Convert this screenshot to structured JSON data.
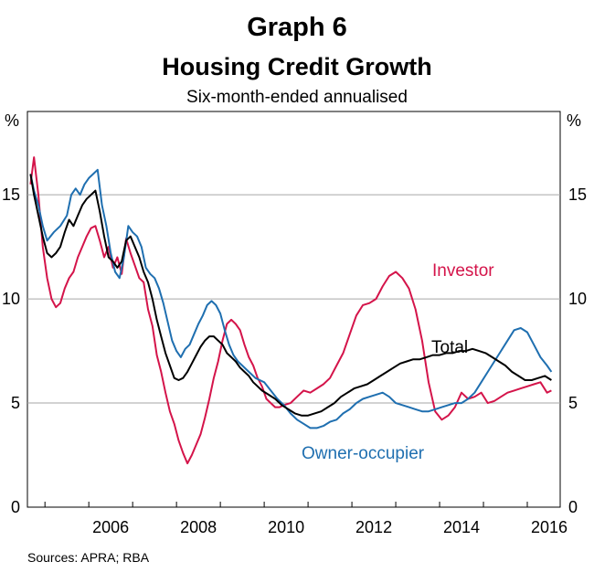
{
  "chart_data": {
    "type": "line",
    "title": "Graph 6",
    "subtitle": "Housing Credit Growth",
    "note": "Six-month-ended annualised",
    "ylabel_left": "%",
    "ylabel_right": "%",
    "xlim": [
      2004.6,
      2016.75
    ],
    "ylim": [
      0,
      19
    ],
    "yticks": [
      0,
      5,
      10,
      15
    ],
    "xticks": [
      2006,
      2008,
      2010,
      2012,
      2014,
      2016
    ],
    "grid": true,
    "source": "Sources:  APRA; RBA",
    "series": [
      {
        "name": "Investor",
        "color": "#d4144a",
        "x": [
          2004.67,
          2004.75,
          2004.85,
          2004.95,
          2005.05,
          2005.15,
          2005.25,
          2005.35,
          2005.45,
          2005.55,
          2005.65,
          2005.75,
          2005.85,
          2005.95,
          2006.05,
          2006.15,
          2006.25,
          2006.35,
          2006.45,
          2006.55,
          2006.65,
          2006.75,
          2006.85,
          2006.95,
          2007.05,
          2007.15,
          2007.25,
          2007.35,
          2007.45,
          2007.55,
          2007.65,
          2007.75,
          2007.85,
          2007.95,
          2008.05,
          2008.15,
          2008.25,
          2008.35,
          2008.45,
          2008.55,
          2008.65,
          2008.75,
          2008.85,
          2008.95,
          2009.05,
          2009.15,
          2009.25,
          2009.35,
          2009.45,
          2009.55,
          2009.65,
          2009.75,
          2009.85,
          2009.95,
          2010.05,
          2010.15,
          2010.25,
          2010.35,
          2010.45,
          2010.6,
          2010.75,
          2010.9,
          2011.05,
          2011.2,
          2011.35,
          2011.5,
          2011.65,
          2011.8,
          2011.95,
          2012.1,
          2012.25,
          2012.4,
          2012.55,
          2012.7,
          2012.85,
          2013.0,
          2013.15,
          2013.3,
          2013.45,
          2013.6,
          2013.75,
          2013.9,
          2014.05,
          2014.2,
          2014.35,
          2014.5,
          2014.65,
          2014.8,
          2014.95,
          2015.1,
          2015.25,
          2015.4,
          2015.55,
          2015.7,
          2015.85,
          2016.0,
          2016.15,
          2016.3,
          2016.45,
          2016.55
        ],
        "y": [
          15.5,
          16.8,
          15.0,
          12.5,
          11.0,
          10.0,
          9.6,
          9.8,
          10.5,
          11.0,
          11.3,
          12.0,
          12.5,
          13.0,
          13.4,
          13.5,
          12.8,
          12.0,
          12.5,
          11.5,
          12.0,
          11.2,
          12.9,
          12.2,
          11.6,
          11.0,
          10.8,
          9.5,
          8.7,
          7.3,
          6.5,
          5.5,
          4.6,
          4.0,
          3.2,
          2.6,
          2.1,
          2.5,
          3.0,
          3.5,
          4.3,
          5.2,
          6.2,
          7.0,
          8.0,
          8.8,
          9.0,
          8.8,
          8.5,
          7.8,
          7.2,
          6.8,
          6.2,
          5.8,
          5.2,
          5.0,
          4.8,
          4.8,
          4.9,
          5.0,
          5.3,
          5.6,
          5.5,
          5.7,
          5.9,
          6.2,
          6.8,
          7.4,
          8.3,
          9.2,
          9.7,
          9.8,
          10.0,
          10.6,
          11.1,
          11.3,
          11.0,
          10.5,
          9.5,
          8.0,
          6.0,
          4.6,
          4.2,
          4.4,
          4.8,
          5.5,
          5.2,
          5.3,
          5.5,
          5.0,
          5.1,
          5.3,
          5.5,
          5.6,
          5.7,
          5.8,
          5.9,
          6.0,
          5.5,
          5.6
        ]
      },
      {
        "name": "Owner-occupier",
        "color": "#1f6fb0",
        "x": [
          2004.67,
          2004.75,
          2004.85,
          2004.95,
          2005.05,
          2005.2,
          2005.35,
          2005.5,
          2005.6,
          2005.7,
          2005.8,
          2005.9,
          2006.0,
          2006.1,
          2006.2,
          2006.3,
          2006.4,
          2006.5,
          2006.6,
          2006.7,
          2006.8,
          2006.9,
          2007.0,
          2007.1,
          2007.2,
          2007.3,
          2007.4,
          2007.5,
          2007.6,
          2007.7,
          2007.8,
          2007.9,
          2008.0,
          2008.1,
          2008.2,
          2008.3,
          2008.4,
          2008.5,
          2008.6,
          2008.7,
          2008.8,
          2008.9,
          2009.0,
          2009.1,
          2009.2,
          2009.3,
          2009.4,
          2009.5,
          2009.6,
          2009.7,
          2009.8,
          2009.9,
          2010.0,
          2010.15,
          2010.3,
          2010.45,
          2010.6,
          2010.75,
          2010.9,
          2011.05,
          2011.2,
          2011.35,
          2011.5,
          2011.65,
          2011.8,
          2011.95,
          2012.1,
          2012.25,
          2012.4,
          2012.55,
          2012.7,
          2012.85,
          2013.0,
          2013.15,
          2013.3,
          2013.45,
          2013.6,
          2013.75,
          2013.9,
          2014.05,
          2014.2,
          2014.35,
          2014.5,
          2014.65,
          2014.8,
          2014.95,
          2015.1,
          2015.25,
          2015.4,
          2015.55,
          2015.7,
          2015.85,
          2016.0,
          2016.15,
          2016.3,
          2016.45,
          2016.55
        ],
        "y": [
          16.0,
          15.2,
          14.5,
          13.5,
          12.8,
          13.2,
          13.5,
          14.0,
          15.0,
          15.3,
          15.0,
          15.5,
          15.8,
          16.0,
          16.2,
          14.5,
          13.5,
          12.2,
          11.3,
          11.0,
          12.0,
          13.5,
          13.2,
          13.0,
          12.5,
          11.5,
          11.2,
          11.0,
          10.5,
          9.8,
          8.9,
          8.0,
          7.5,
          7.2,
          7.6,
          7.8,
          8.3,
          8.8,
          9.2,
          9.7,
          9.9,
          9.7,
          9.3,
          8.5,
          7.8,
          7.3,
          7.0,
          6.8,
          6.6,
          6.4,
          6.2,
          6.1,
          6.0,
          5.6,
          5.2,
          4.9,
          4.5,
          4.2,
          4.0,
          3.8,
          3.8,
          3.9,
          4.1,
          4.2,
          4.5,
          4.7,
          5.0,
          5.2,
          5.3,
          5.4,
          5.5,
          5.3,
          5.0,
          4.9,
          4.8,
          4.7,
          4.6,
          4.6,
          4.7,
          4.8,
          4.9,
          5.0,
          5.0,
          5.2,
          5.5,
          6.0,
          6.5,
          7.0,
          7.5,
          8.0,
          8.5,
          8.6,
          8.4,
          7.8,
          7.2,
          6.8,
          6.5
        ]
      },
      {
        "name": "Total",
        "color": "#000000",
        "x": [
          2004.67,
          2004.75,
          2004.85,
          2004.95,
          2005.05,
          2005.15,
          2005.25,
          2005.35,
          2005.45,
          2005.55,
          2005.65,
          2005.75,
          2005.85,
          2005.95,
          2006.05,
          2006.15,
          2006.25,
          2006.35,
          2006.45,
          2006.55,
          2006.65,
          2006.75,
          2006.85,
          2006.95,
          2007.05,
          2007.15,
          2007.25,
          2007.35,
          2007.45,
          2007.55,
          2007.65,
          2007.75,
          2007.85,
          2007.95,
          2008.05,
          2008.15,
          2008.25,
          2008.35,
          2008.45,
          2008.55,
          2008.65,
          2008.75,
          2008.85,
          2008.95,
          2009.05,
          2009.15,
          2009.25,
          2009.35,
          2009.45,
          2009.55,
          2009.65,
          2009.75,
          2009.85,
          2009.95,
          2010.1,
          2010.25,
          2010.4,
          2010.55,
          2010.7,
          2010.85,
          2011.0,
          2011.15,
          2011.3,
          2011.45,
          2011.6,
          2011.75,
          2011.9,
          2012.05,
          2012.2,
          2012.35,
          2012.5,
          2012.65,
          2012.8,
          2012.95,
          2013.1,
          2013.25,
          2013.4,
          2013.55,
          2013.7,
          2013.85,
          2014.0,
          2014.15,
          2014.3,
          2014.45,
          2014.6,
          2014.75,
          2014.9,
          2015.05,
          2015.2,
          2015.35,
          2015.5,
          2015.65,
          2015.8,
          2015.95,
          2016.1,
          2016.25,
          2016.4,
          2016.55
        ],
        "y": [
          16.0,
          15.0,
          14.0,
          13.0,
          12.2,
          12.0,
          12.2,
          12.5,
          13.2,
          13.8,
          13.5,
          14.0,
          14.5,
          14.8,
          15.0,
          15.2,
          14.2,
          13.0,
          12.0,
          11.8,
          11.5,
          11.8,
          12.8,
          13.0,
          12.5,
          12.0,
          11.3,
          10.8,
          10.0,
          9.0,
          8.2,
          7.4,
          6.8,
          6.2,
          6.1,
          6.2,
          6.5,
          6.9,
          7.3,
          7.7,
          8.0,
          8.2,
          8.2,
          8.0,
          7.8,
          7.4,
          7.2,
          7.0,
          6.7,
          6.5,
          6.3,
          6.0,
          5.8,
          5.6,
          5.4,
          5.2,
          4.9,
          4.7,
          4.5,
          4.4,
          4.4,
          4.5,
          4.6,
          4.8,
          5.0,
          5.3,
          5.5,
          5.7,
          5.8,
          5.9,
          6.1,
          6.3,
          6.5,
          6.7,
          6.9,
          7.0,
          7.1,
          7.1,
          7.2,
          7.3,
          7.3,
          7.4,
          7.4,
          7.5,
          7.5,
          7.6,
          7.5,
          7.4,
          7.2,
          7.0,
          6.8,
          6.5,
          6.3,
          6.1,
          6.1,
          6.2,
          6.3,
          6.1
        ]
      }
    ]
  },
  "labels": {
    "investor": "Investor",
    "total": "Total",
    "owner": "Owner-occupier"
  }
}
